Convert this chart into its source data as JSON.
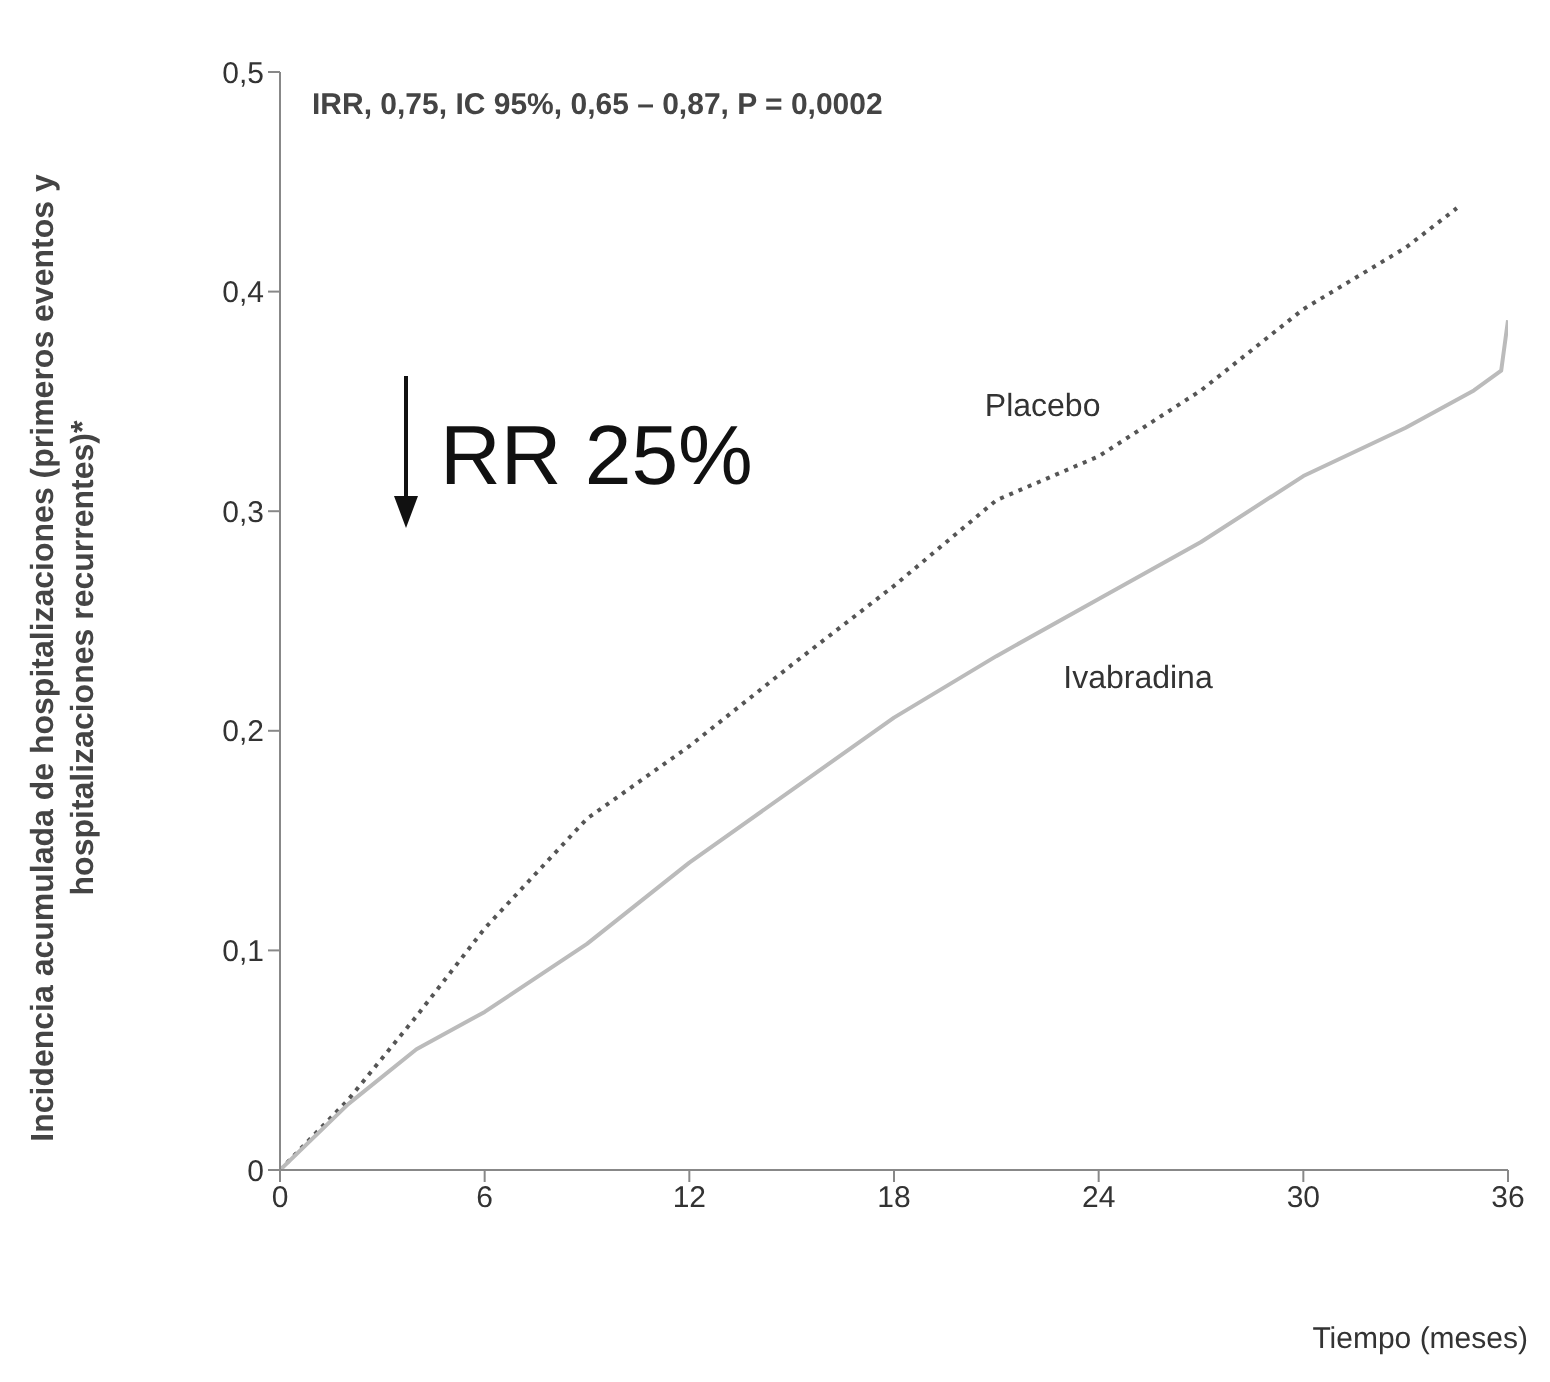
{
  "chart_data": {
    "type": "line",
    "xlabel": "Tiempo (meses)",
    "ylabel": "Incidencia acumulada de hospitalizaciones (primeros eventos y hospitalizaciones recurrentes)*",
    "annotations": [
      "IRR, 0,75, IC 95%, 0,65 – 0,87, P = 0,0002",
      "RR 25%"
    ],
    "xlim": [
      0,
      36
    ],
    "xticks": [
      0,
      6,
      12,
      18,
      24,
      30,
      36
    ],
    "ylim": [
      0,
      0.5
    ],
    "yticks": [
      {
        "value": 0,
        "label": "0"
      },
      {
        "value": 0.1,
        "label": "0,1"
      },
      {
        "value": 0.2,
        "label": "0,2"
      },
      {
        "value": 0.3,
        "label": "0,3"
      },
      {
        "value": 0.4,
        "label": "0,4"
      },
      {
        "value": 0.5,
        "label": "0,5"
      }
    ],
    "grid": false,
    "legend": false,
    "marker": "none",
    "series": [
      {
        "name": "Placebo",
        "color": "#555555",
        "line_style": "dotted",
        "x": [
          0,
          2,
          4,
          6,
          9,
          12,
          15,
          18,
          21,
          24,
          27,
          30,
          33,
          34.5
        ],
        "values": [
          0,
          0.032,
          0.07,
          0.11,
          0.16,
          0.193,
          0.23,
          0.266,
          0.305,
          0.325,
          0.355,
          0.392,
          0.42,
          0.438
        ]
      },
      {
        "name": "Ivabradina",
        "color": "#bbbbbb",
        "line_style": "solid",
        "x": [
          0,
          2,
          4,
          6,
          9,
          12,
          15,
          18,
          21,
          24,
          27,
          30,
          33,
          35,
          35.8,
          36
        ],
        "values": [
          0,
          0.03,
          0.055,
          0.072,
          0.103,
          0.14,
          0.173,
          0.206,
          0.234,
          0.26,
          0.286,
          0.316,
          0.338,
          0.355,
          0.364,
          0.387
        ]
      }
    ]
  }
}
